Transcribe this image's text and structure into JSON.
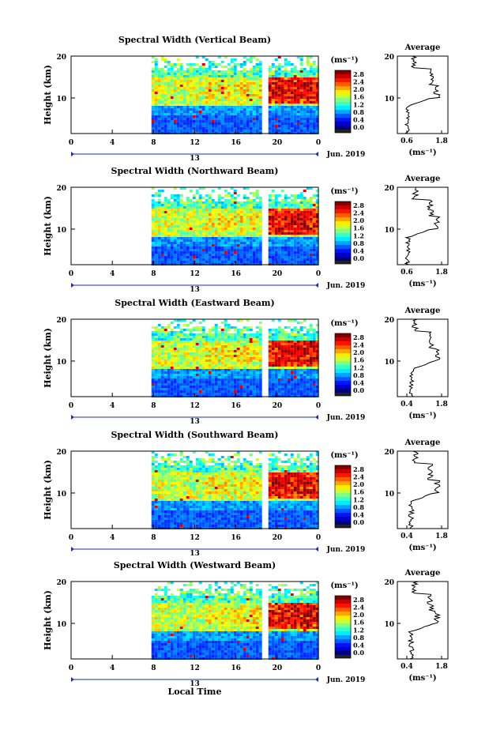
{
  "chart_data": {
    "type": "heatmap",
    "x_label": "Local Time",
    "y_label": "Height (km)",
    "x_ticks": [
      "0",
      "4",
      "8",
      "12",
      "16",
      "20",
      "0"
    ],
    "x_range_hours": [
      0,
      24
    ],
    "y_ticks": [
      "20",
      "10"
    ],
    "y_range_km": [
      1.5,
      20
    ],
    "date_label": "13",
    "month_label": "Jun. 2019",
    "colorbar": {
      "unit": "(ms⁻¹)",
      "ticks": [
        "2.8",
        "2.4",
        "2.0",
        "1.6",
        "1.2",
        "0.8",
        "0.4",
        "0.0"
      ],
      "range": [
        0,
        3.0
      ],
      "colormap": "jet"
    },
    "data_start_hour": 7.8,
    "data_gap_hours": [
      18.7,
      18.95
    ],
    "panels": [
      {
        "title": "Spectral Width (Vertical Beam)",
        "avg_title": "Average",
        "avg_xticks": [
          "0.6",
          "1.8"
        ],
        "avg_range": [
          0.6,
          1.8
        ],
        "avg_unit": "(ms⁻¹)"
      },
      {
        "title": "Spectral Width (Northward Beam)",
        "avg_title": "Average",
        "avg_xticks": [
          "0.6",
          "1.8"
        ],
        "avg_range": [
          0.6,
          1.8
        ],
        "avg_unit": "(ms⁻¹)"
      },
      {
        "title": "Spectral Width (Eastward Beam)",
        "avg_title": "Average",
        "avg_xticks": [
          "0.4",
          "1.8"
        ],
        "avg_range": [
          0.4,
          1.8
        ],
        "avg_unit": "(ms⁻¹)"
      },
      {
        "title": "Spectral Width (Southward Beam)",
        "avg_title": "Average",
        "avg_xticks": [
          "0.4",
          "1.8"
        ],
        "avg_range": [
          0.4,
          1.8
        ],
        "avg_unit": "(ms⁻¹)"
      },
      {
        "title": "Spectral Width (Westward Beam)",
        "avg_title": "Average",
        "avg_xticks": [
          "0.4",
          "1.8"
        ],
        "avg_range": [
          0.4,
          1.8
        ],
        "avg_unit": "(ms⁻¹)"
      }
    ]
  }
}
